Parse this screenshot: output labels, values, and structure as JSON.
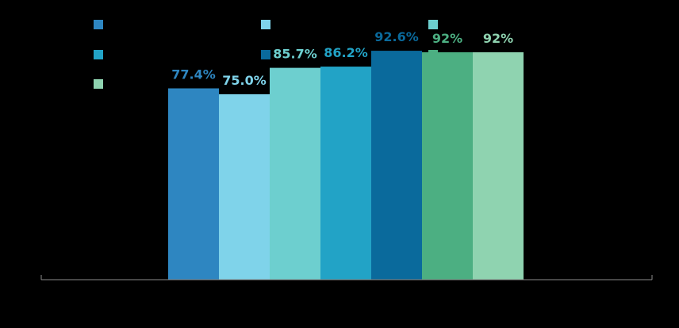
{
  "chart_data": {
    "type": "bar",
    "title": "",
    "xlabel": "",
    "ylabel": "",
    "ylim": [
      0,
      100
    ],
    "grid": false,
    "legend_position": "top-left",
    "categories": [
      ""
    ],
    "series": [
      {
        "label": "77.4%",
        "values": [
          77.4
        ],
        "color": "#2e86c1"
      },
      {
        "label": "75.0%",
        "values": [
          75.0
        ],
        "color": "#7fd3ea"
      },
      {
        "label": "85.7%",
        "values": [
          85.7
        ],
        "color": "#6dcfcf"
      },
      {
        "label": "86.2%",
        "values": [
          86.2
        ],
        "color": "#22a3c6"
      },
      {
        "label": "92.6%",
        "values": [
          92.6
        ],
        "color": "#0a6a9c"
      },
      {
        "label": "92%",
        "values": [
          92.0
        ],
        "color": "#4caf82"
      },
      {
        "label": "92%",
        "values": [
          92.0
        ],
        "color": "#8fd3b0"
      }
    ]
  }
}
